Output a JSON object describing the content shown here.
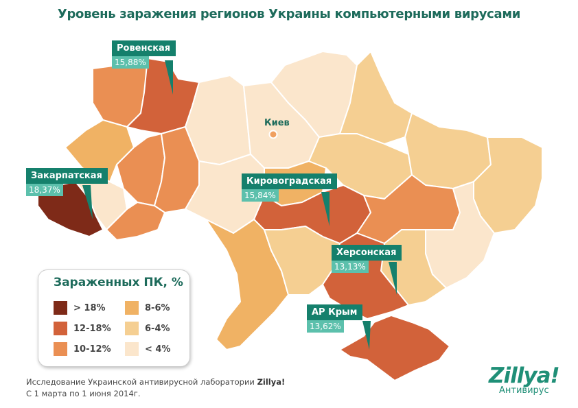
{
  "title": "Уровень заражения регионов Украины компьютерными вирусами",
  "capital": {
    "name": "Киев"
  },
  "callouts": [
    {
      "region": "Ровенская",
      "value": "15,88%"
    },
    {
      "region": "Закарпатская",
      "value": "18,37%"
    },
    {
      "region": "Кировоградская",
      "value": "15,84%"
    },
    {
      "region": "Херсонская",
      "value": "13,13%"
    },
    {
      "region": "АР Крым",
      "value": "13,62%"
    }
  ],
  "legend": {
    "title": "Зараженных ПК, %",
    "items": [
      {
        "label": "> 18%",
        "color": "#7e2a18"
      },
      {
        "label": "12-18%",
        "color": "#d2623a"
      },
      {
        "label": "10-12%",
        "color": "#ea8f53"
      },
      {
        "label": "8-6%",
        "color": "#f0b264"
      },
      {
        "label": "6-4%",
        "color": "#f5cf92"
      },
      {
        "label": "< 4%",
        "color": "#fbe6cc"
      }
    ]
  },
  "footer": {
    "line1_prefix": "Исследование Украинской антивирусной лаборатории ",
    "line1_brand": "Zillya!",
    "line2": "С 1 марта по 1 июня 2014г."
  },
  "brand": {
    "logo": "Zillya!",
    "subtitle": "Антивирус"
  },
  "colors": {
    "callout_name_bg": "#15806c",
    "callout_value_bg": "#5cc0ac",
    "accent_text": "#1d6b5b",
    "border": "#ffffff"
  }
}
